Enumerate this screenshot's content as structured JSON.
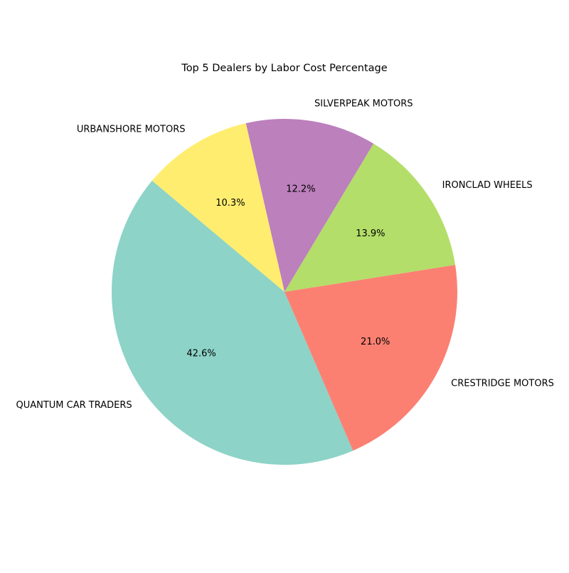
{
  "chart_data": {
    "type": "pie",
    "title": "Top 5 Dealers by Labor Cost Percentage",
    "start_angle_deg": 140,
    "direction": "counterclockwise",
    "slices": [
      {
        "label": "QUANTUM CAR TRADERS",
        "value": 42.6,
        "pct_label": "42.6%",
        "color": "#8dd3c7"
      },
      {
        "label": "CRESTRIDGE MOTORS",
        "value": 21.0,
        "pct_label": "21.0%",
        "color": "#fb8072"
      },
      {
        "label": "IRONCLAD WHEELS",
        "value": 13.9,
        "pct_label": "13.9%",
        "color": "#b3de69"
      },
      {
        "label": "SILVERPEAK MOTORS",
        "value": 12.2,
        "pct_label": "12.2%",
        "color": "#bc80bd"
      },
      {
        "label": "URBANSHORE MOTORS",
        "value": 10.3,
        "pct_label": "10.3%",
        "color": "#ffed6f"
      }
    ]
  }
}
